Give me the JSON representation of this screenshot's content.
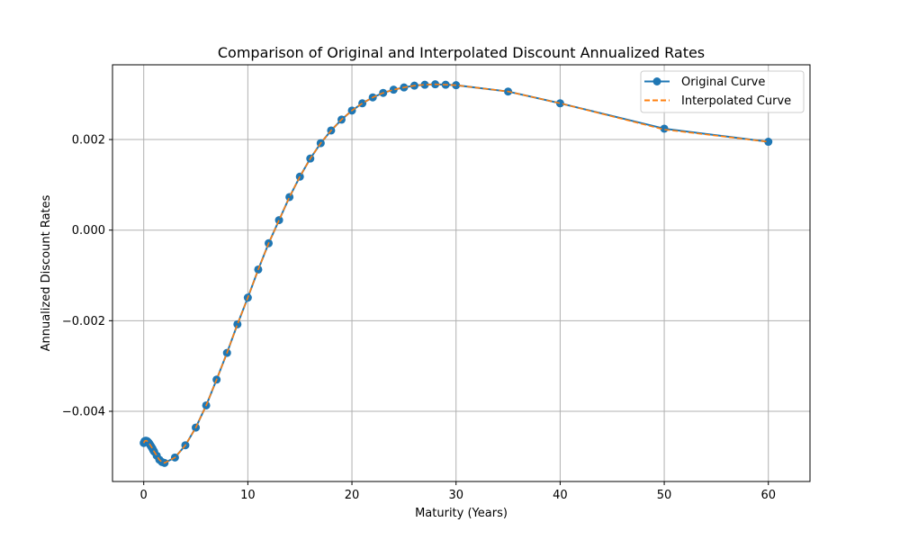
{
  "chart_data": {
    "type": "line",
    "title": "Comparison of Original and Interpolated Discount Annualized Rates",
    "xlabel": "Maturity (Years)",
    "ylabel": "Annualized Discount Rates",
    "xlim": [
      -3,
      64
    ],
    "ylim": [
      -0.00555,
      0.00365
    ],
    "x_ticks": [
      0,
      10,
      20,
      30,
      40,
      50,
      60
    ],
    "x_tick_labels": [
      "0",
      "10",
      "20",
      "30",
      "40",
      "50",
      "60"
    ],
    "y_ticks": [
      -0.004,
      -0.002,
      0.0,
      0.002
    ],
    "y_tick_labels": [
      "−0.004",
      "−0.002",
      "0.000",
      "0.002"
    ],
    "grid": true,
    "legend_position": "top-right",
    "colors": {
      "original": "#1f77b4",
      "interpolated": "#ff7f0e",
      "grid": "#b0b0b0"
    },
    "series": [
      {
        "name": "Original Curve",
        "style": "solid line with circle markers",
        "x": [
          0.0,
          0.083,
          0.167,
          0.25,
          0.333,
          0.417,
          0.5,
          0.583,
          0.667,
          0.75,
          0.833,
          0.917,
          1.0,
          1.25,
          1.5,
          1.75,
          2.0,
          3,
          4,
          5,
          6,
          7,
          8,
          9,
          10,
          11,
          12,
          13,
          14,
          15,
          16,
          17,
          18,
          19,
          20,
          21,
          22,
          23,
          24,
          25,
          26,
          27,
          28,
          29,
          30,
          35,
          40,
          50,
          60
        ],
        "y": [
          -0.0047,
          -0.00466,
          -0.00465,
          -0.00465,
          -0.00466,
          -0.00468,
          -0.0047,
          -0.00473,
          -0.00476,
          -0.00479,
          -0.00482,
          -0.00486,
          -0.00489,
          -0.00498,
          -0.00507,
          -0.00512,
          -0.00514,
          -0.00502,
          -0.00475,
          -0.00436,
          -0.00387,
          -0.0033,
          -0.00271,
          -0.00208,
          -0.00149,
          -0.00087,
          -0.00029,
          0.00022,
          0.00073,
          0.00118,
          0.00158,
          0.00192,
          0.0022,
          0.00244,
          0.00264,
          0.0028,
          0.00293,
          0.00303,
          0.0031,
          0.00315,
          0.00319,
          0.00321,
          0.00322,
          0.00321,
          0.0032,
          0.00306,
          0.0028,
          0.00224,
          0.00195
        ]
      },
      {
        "name": "Interpolated Curve",
        "style": "dashed line",
        "x": [
          0.0,
          0.083,
          0.167,
          0.25,
          0.333,
          0.417,
          0.5,
          0.583,
          0.667,
          0.75,
          0.833,
          0.917,
          1.0,
          1.25,
          1.5,
          1.75,
          2.0,
          3,
          4,
          5,
          6,
          7,
          8,
          9,
          10,
          11,
          12,
          13,
          14,
          15,
          16,
          17,
          18,
          19,
          20,
          21,
          22,
          23,
          24,
          25,
          26,
          27,
          28,
          29,
          30,
          35,
          40,
          50,
          60
        ],
        "y": [
          -0.0047,
          -0.00466,
          -0.00465,
          -0.00465,
          -0.00466,
          -0.00468,
          -0.0047,
          -0.00473,
          -0.00476,
          -0.00479,
          -0.00482,
          -0.00486,
          -0.00489,
          -0.00498,
          -0.00507,
          -0.00512,
          -0.00514,
          -0.00502,
          -0.00475,
          -0.00436,
          -0.00387,
          -0.0033,
          -0.00271,
          -0.00208,
          -0.00149,
          -0.00087,
          -0.00029,
          0.00022,
          0.00073,
          0.00118,
          0.00158,
          0.00192,
          0.0022,
          0.00244,
          0.00264,
          0.0028,
          0.00293,
          0.00303,
          0.0031,
          0.00315,
          0.00319,
          0.00321,
          0.00322,
          0.00321,
          0.0032,
          0.00306,
          0.0028,
          0.00222,
          0.00195
        ]
      }
    ]
  }
}
